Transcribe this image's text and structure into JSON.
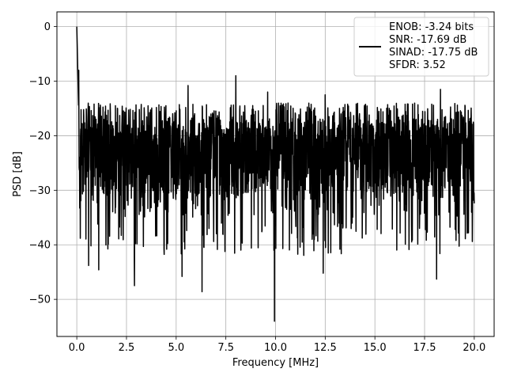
{
  "chart_data": {
    "type": "line",
    "title": "",
    "xlabel": "Frequency [MHz]",
    "ylabel": "PSD [dB]",
    "xlim": [
      -1.0,
      21.0
    ],
    "ylim": [
      -56.8,
      2.7
    ],
    "xticks": [
      0.0,
      2.5,
      5.0,
      7.5,
      10.0,
      12.5,
      15.0,
      17.5,
      20.0
    ],
    "xtick_labels": [
      "0.0",
      "2.5",
      "5.0",
      "7.5",
      "10.0",
      "12.5",
      "15.0",
      "17.5",
      "20.0"
    ],
    "yticks": [
      0,
      -10,
      -20,
      -30,
      -40,
      -50
    ],
    "ytick_labels": [
      "0",
      "−10",
      "−20",
      "−30",
      "−40",
      "−50"
    ],
    "grid": true,
    "legend_placement": "top-right",
    "series": [
      {
        "color": "#000000",
        "x_range": [
          0.0,
          20.0
        ],
        "peak": {
          "x": 0.0,
          "y": 0.0
        },
        "noise_floor_typical": [
          -31,
          -16
        ],
        "notable_minima": [
          {
            "x": 0.6,
            "y": -43.8
          },
          {
            "x": 1.1,
            "y": -44.6
          },
          {
            "x": 2.9,
            "y": -47.5
          },
          {
            "x": 5.3,
            "y": -45.8
          },
          {
            "x": 6.3,
            "y": -48.6
          },
          {
            "x": 9.95,
            "y": -54.0
          },
          {
            "x": 12.4,
            "y": -45.2
          },
          {
            "x": 18.1,
            "y": -46.3
          }
        ],
        "notable_maxima": [
          {
            "x": 0.1,
            "y": -8.0
          },
          {
            "x": 8.0,
            "y": -9.0
          },
          {
            "x": 5.6,
            "y": -10.8
          },
          {
            "x": 9.6,
            "y": -12.0
          },
          {
            "x": 12.5,
            "y": -12.5
          },
          {
            "x": 18.3,
            "y": -11.5
          }
        ]
      }
    ],
    "legend": {
      "lines": [
        "ENOB: -3.24 bits",
        "SNR: -17.69 dB",
        "SINAD: -17.75 dB",
        "SFDR: 3.52"
      ]
    }
  }
}
